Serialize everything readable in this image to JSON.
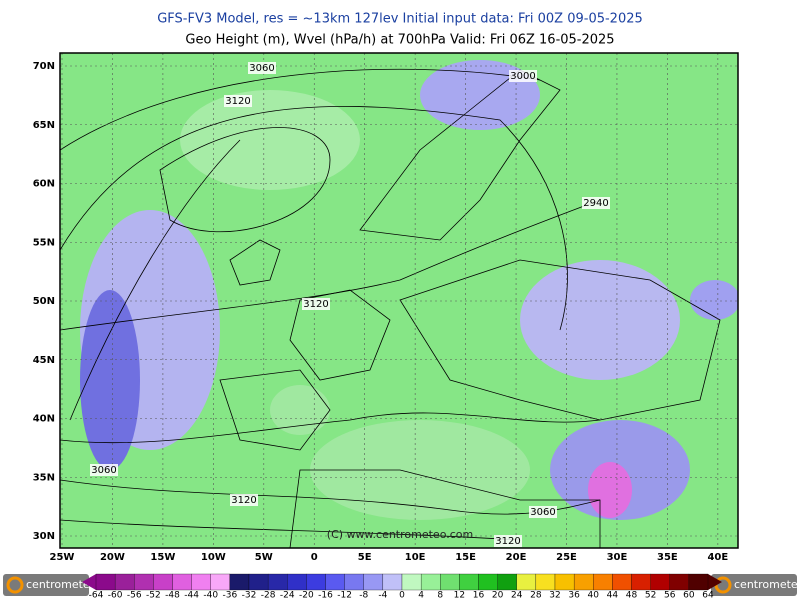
{
  "header": {
    "line1": "GFS-FV3 Model, res = ~13km 127lev    Initial input data: Fri 00Z 09-05-2025",
    "line2": "Geo Height (m), Wvel (hPa/h) at 700hPa  Valid: Fri 06Z 16-05-2025"
  },
  "map": {
    "lat_labels": [
      "70N",
      "65N",
      "60N",
      "55N",
      "50N",
      "45N",
      "40N",
      "35N",
      "30N"
    ],
    "lon_labels": [
      "25W",
      "20W",
      "15W",
      "10W",
      "5W",
      "0",
      "5E",
      "10E",
      "15E",
      "20E",
      "25E",
      "30E",
      "35E",
      "40E"
    ],
    "contour_labels": [
      "3060",
      "3000",
      "3120",
      "2940",
      "3120",
      "3060",
      "3120",
      "3060",
      "3120"
    ],
    "credit": "(C) www.centrometeo.com"
  },
  "colorbar": {
    "labels": [
      -64,
      -60,
      -56,
      -52,
      -48,
      -44,
      -40,
      -36,
      -32,
      -28,
      -24,
      -20,
      -16,
      -12,
      -8,
      -4,
      0,
      4,
      8,
      12,
      16,
      20,
      24,
      28,
      32,
      36,
      40,
      44,
      48,
      52,
      56,
      60,
      64
    ]
  },
  "logos": [
    "centrometeo",
    "centrometeo"
  ]
}
